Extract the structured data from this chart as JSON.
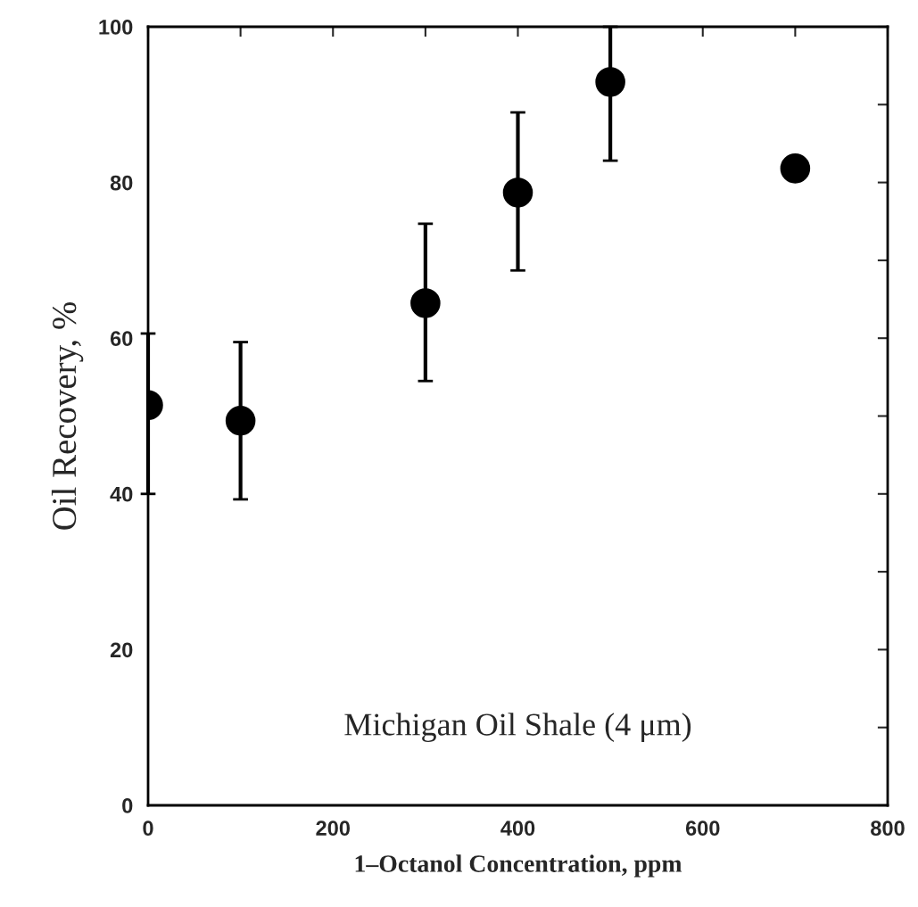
{
  "chart_data": {
    "type": "scatter",
    "xlabel": "1–Octanol Concentration, ppm",
    "ylabel": "Oil Recovery, %",
    "x": [
      0,
      100,
      300,
      400,
      500,
      700
    ],
    "values": [
      51.4,
      49.4,
      64.5,
      78.7,
      92.9,
      81.8
    ],
    "errors": [
      [
        40.0,
        60.6
      ],
      [
        39.3,
        59.5
      ],
      [
        54.5,
        74.7
      ],
      [
        68.7,
        89.0
      ],
      [
        82.8,
        100
      ],
      null
    ],
    "color": "#000000",
    "marker": "circle",
    "xlim": [
      0,
      800
    ],
    "ylim": [
      0,
      100
    ],
    "xticks": [
      0,
      {
        "value": 100,
        "label": null
      },
      200,
      {
        "value": 300,
        "label": null
      },
      400,
      {
        "value": 500,
        "label": null
      },
      600,
      {
        "value": 700,
        "label": null
      },
      800
    ],
    "yticks": [
      0,
      {
        "value": 10,
        "label": null
      },
      20,
      {
        "value": 30,
        "label": null
      },
      40,
      {
        "value": 50,
        "label": null
      },
      60,
      {
        "value": 70,
        "label": null
      },
      80,
      {
        "value": 90,
        "label": null
      },
      100
    ],
    "annotations": [
      "Michigan Oil Shale (4 μm)"
    ],
    "grid": false,
    "legend": false
  }
}
